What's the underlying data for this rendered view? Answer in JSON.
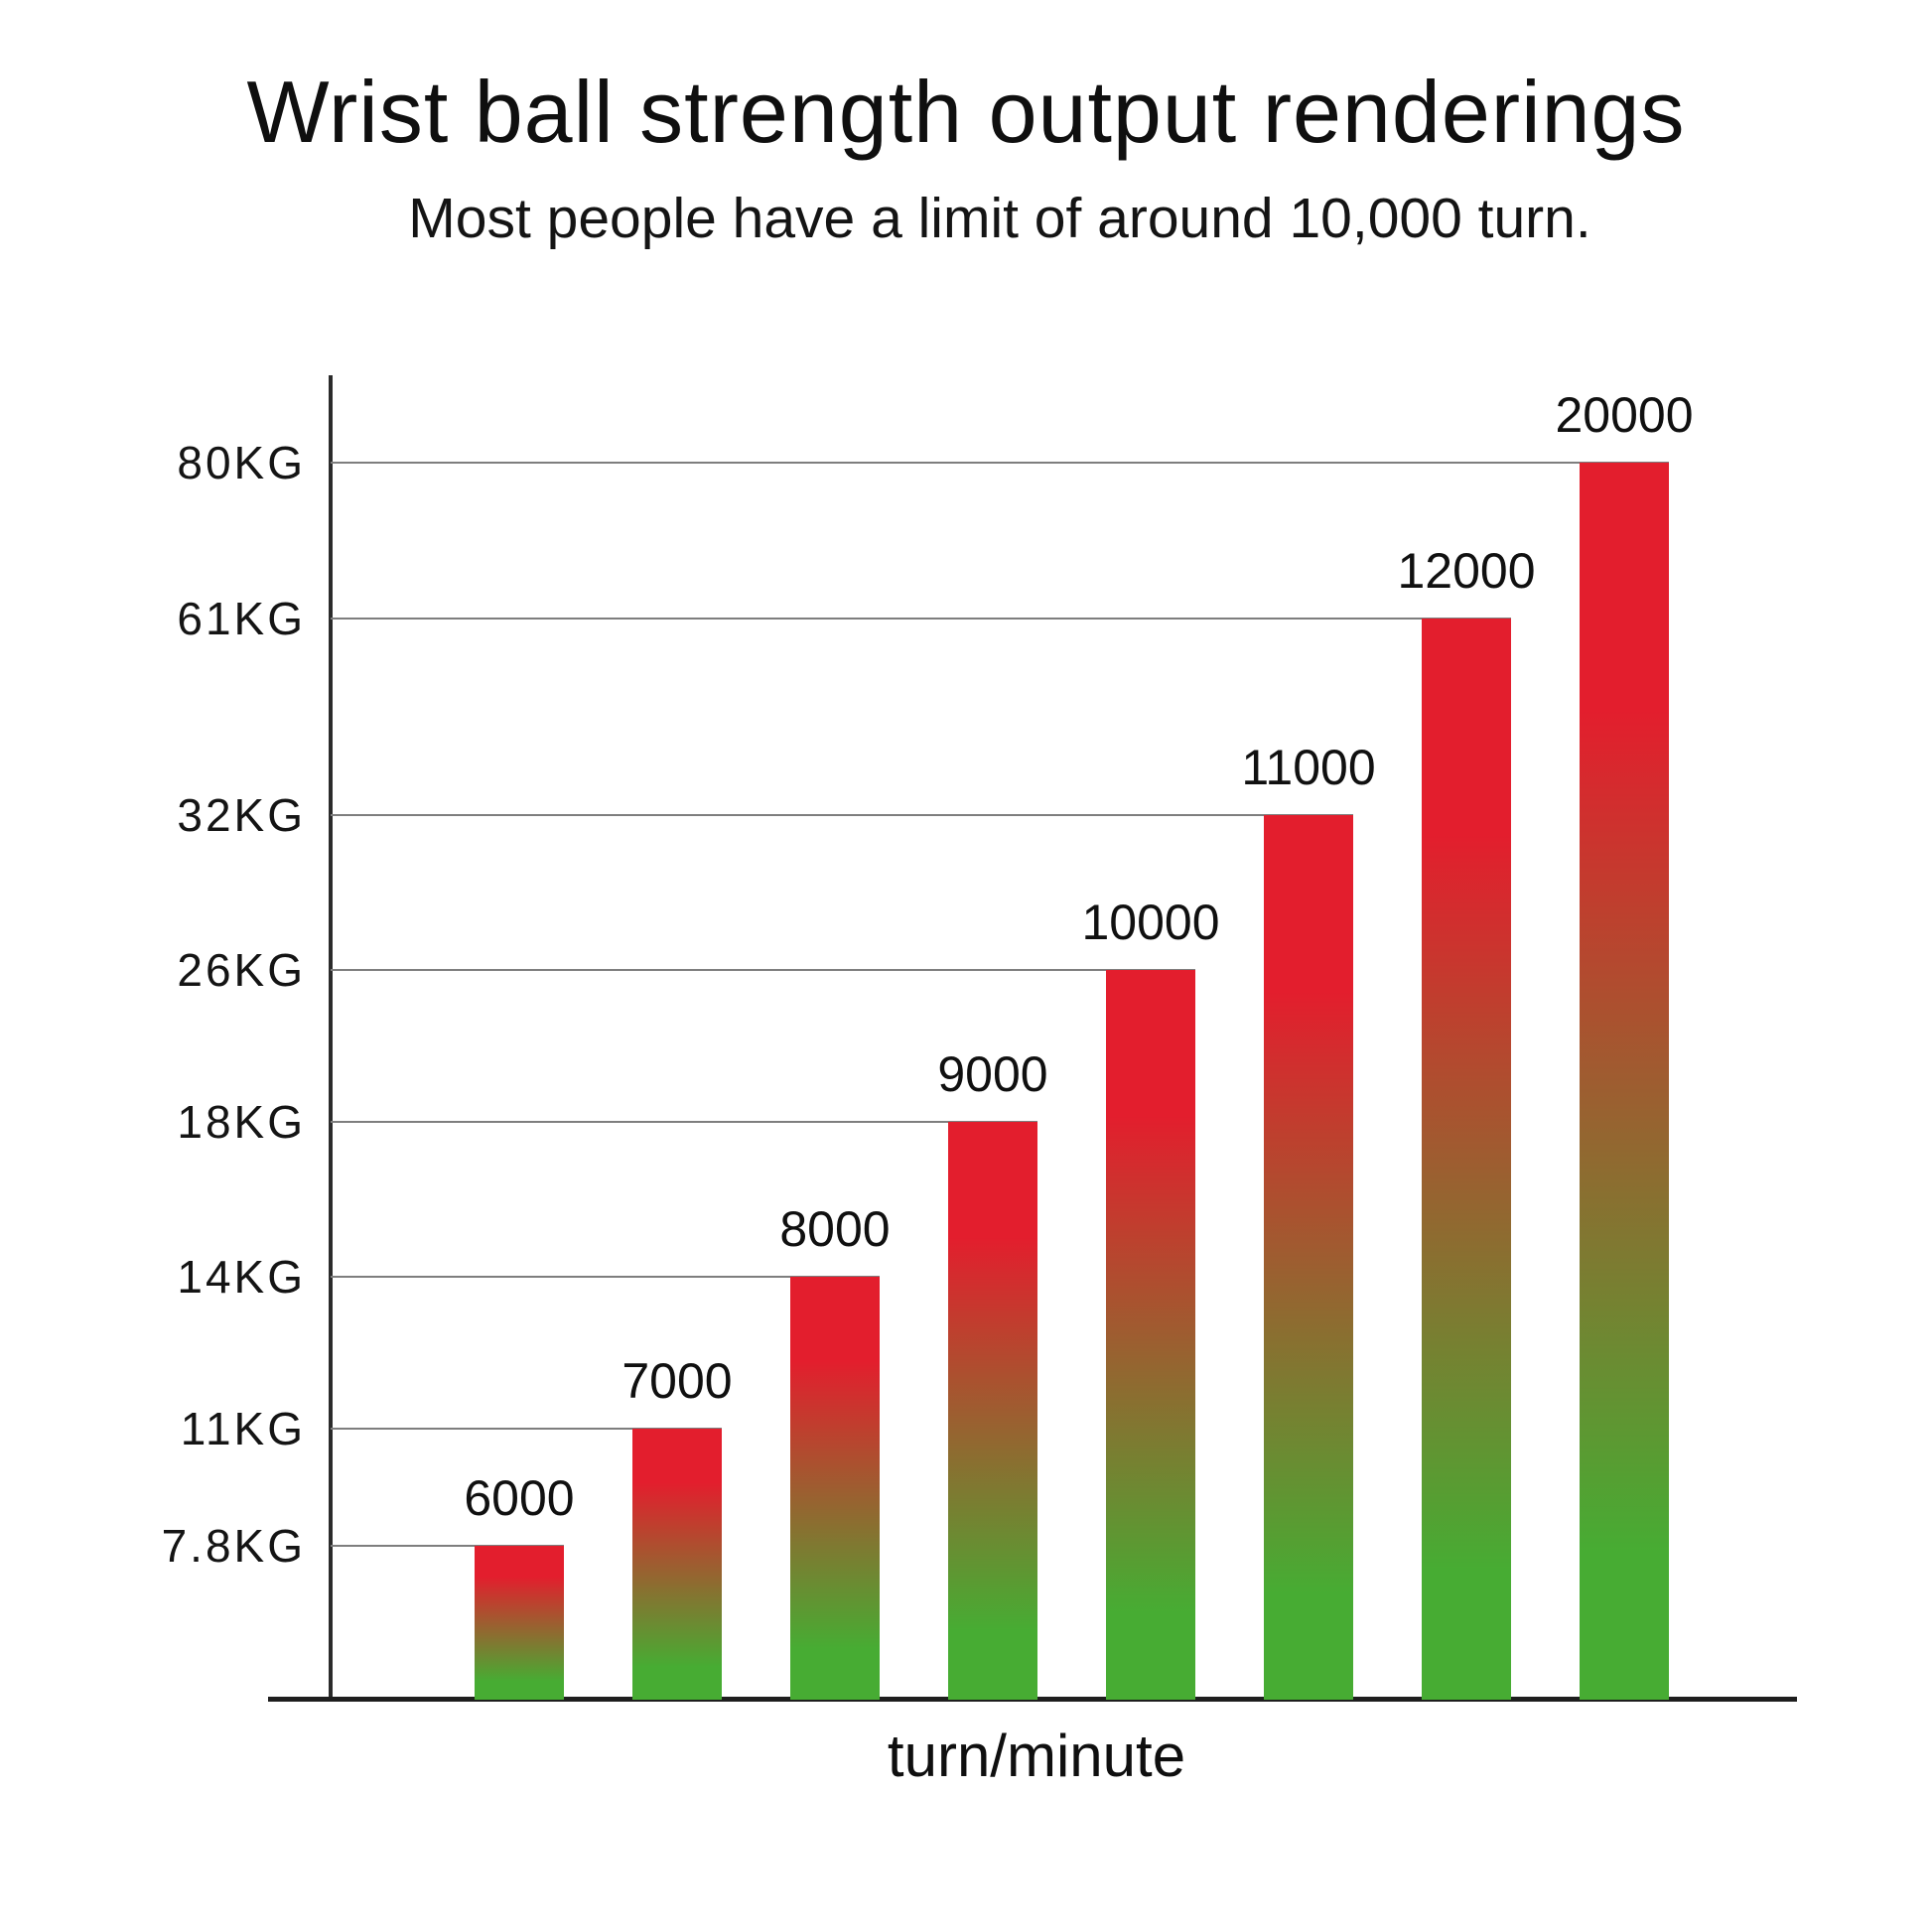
{
  "page": {
    "title": "Wrist ball strength output renderings",
    "subtitle": "Most people have a limit of around 10,000 turn.",
    "x_axis_label": "turn/minute"
  },
  "colors": {
    "bar_gradient_top": "#e31e2d",
    "bar_gradient_bottom": "#47ac33",
    "axis": "#2b2b2b",
    "gridline": "#7e7e7e",
    "text": "#141414"
  },
  "chart_data": {
    "type": "bar",
    "title": "Wrist ball strength output renderings",
    "subtitle": "Most people have a limit of around 10,000 turn.",
    "xlabel": "turn/minute",
    "ylabel": "",
    "unit": "KG",
    "categories": [
      "6000",
      "7000",
      "8000",
      "9000",
      "10000",
      "11000",
      "12000",
      "20000"
    ],
    "values": [
      7.8,
      11,
      14,
      18,
      26,
      32,
      61,
      80
    ],
    "y_tick_labels_top_to_bottom": [
      "80KG",
      "61KG",
      "32KG",
      "26KG",
      "18KG",
      "14KG",
      "11KG",
      "7.8KG"
    ],
    "bars": [
      {
        "turns": "6000",
        "kg_label": "7.8KG",
        "value_kg": 7.8,
        "height_frac": 0.116
      },
      {
        "turns": "7000",
        "kg_label": "11KG",
        "value_kg": 11,
        "height_frac": 0.205
      },
      {
        "turns": "8000",
        "kg_label": "14KG",
        "value_kg": 14,
        "height_frac": 0.319
      },
      {
        "turns": "9000",
        "kg_label": "18KG",
        "value_kg": 18,
        "height_frac": 0.436
      },
      {
        "turns": "10000",
        "kg_label": "26KG",
        "value_kg": 26,
        "height_frac": 0.551
      },
      {
        "turns": "11000",
        "kg_label": "32KG",
        "value_kg": 32,
        "height_frac": 0.668
      },
      {
        "turns": "12000",
        "kg_label": "61KG",
        "value_kg": 61,
        "height_frac": 0.816
      },
      {
        "turns": "20000",
        "kg_label": "80KG",
        "value_kg": 80,
        "height_frac": 0.934
      }
    ],
    "layout_hints": {
      "y_axis_scale": "non-linear; one gridline per bar at the bar's top",
      "grid": "leader lines from y-axis label to bar top",
      "legend": "none",
      "bar_color": "vertical gradient red (top) to green (bottom)"
    }
  }
}
